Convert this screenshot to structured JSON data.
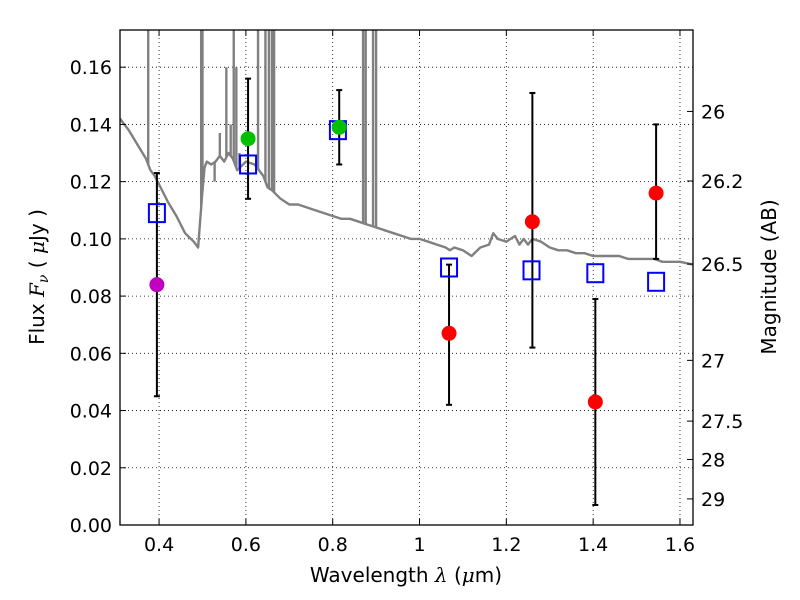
{
  "chart_data": {
    "type": "scatter",
    "xlabel_parts": [
      "Wavelength  ",
      "λ",
      " (",
      "μ",
      "m)"
    ],
    "ylabel_parts": [
      "Flux  ",
      "F",
      "ν",
      "  ( ",
      "μ",
      "Jy )"
    ],
    "y2label": "Magnitude (AB)",
    "xlim": [
      0.31,
      1.63
    ],
    "ylim": [
      0.0,
      0.173
    ],
    "xticks": [
      0.4,
      0.6,
      0.8,
      1.0,
      1.2,
      1.4,
      1.6
    ],
    "xtick_labels": [
      "0.4",
      "0.6",
      "0.8",
      "1",
      "1.2",
      "1.4",
      "1.6"
    ],
    "yticks": [
      0.0,
      0.02,
      0.04,
      0.06,
      0.08,
      0.1,
      0.12,
      0.14,
      0.16
    ],
    "ytick_labels": [
      "0.00",
      "0.02",
      "0.04",
      "0.06",
      "0.08",
      "0.10",
      "0.12",
      "0.14",
      "0.16"
    ],
    "y2ticks": [
      26,
      26.2,
      26.5,
      27,
      27.5,
      28,
      29
    ],
    "y2tick_labels": [
      "26",
      "26.2",
      "26.5",
      "27",
      "27.5",
      "28",
      "29"
    ],
    "grid": true,
    "model_sed": {
      "color": "#808080",
      "x": [
        0.31,
        0.33,
        0.35,
        0.37,
        0.38,
        0.39,
        0.4,
        0.42,
        0.44,
        0.46,
        0.48,
        0.49,
        0.5,
        0.505,
        0.51,
        0.52,
        0.53,
        0.54,
        0.55,
        0.56,
        0.57,
        0.58,
        0.6,
        0.62,
        0.64,
        0.65,
        0.66,
        0.68,
        0.7,
        0.72,
        0.74,
        0.76,
        0.78,
        0.8,
        0.82,
        0.84,
        0.86,
        0.88,
        0.9,
        0.92,
        0.94,
        0.96,
        0.98,
        1.0,
        1.02,
        1.04,
        1.06,
        1.07,
        1.08,
        1.1,
        1.12,
        1.14,
        1.16,
        1.17,
        1.18,
        1.2,
        1.22,
        1.23,
        1.24,
        1.25,
        1.26,
        1.28,
        1.3,
        1.32,
        1.34,
        1.36,
        1.38,
        1.4,
        1.42,
        1.44,
        1.46,
        1.48,
        1.5,
        1.52,
        1.54,
        1.56,
        1.58,
        1.6,
        1.63
      ],
      "y": [
        0.142,
        0.138,
        0.133,
        0.128,
        0.124,
        0.122,
        0.119,
        0.113,
        0.108,
        0.102,
        0.099,
        0.097,
        0.117,
        0.125,
        0.127,
        0.126,
        0.127,
        0.129,
        0.127,
        0.13,
        0.128,
        0.124,
        0.127,
        0.126,
        0.122,
        0.118,
        0.117,
        0.114,
        0.112,
        0.112,
        0.111,
        0.11,
        0.109,
        0.108,
        0.107,
        0.107,
        0.106,
        0.105,
        0.104,
        0.103,
        0.102,
        0.101,
        0.1,
        0.1,
        0.099,
        0.098,
        0.097,
        0.096,
        0.097,
        0.096,
        0.094,
        0.097,
        0.098,
        0.102,
        0.1,
        0.099,
        0.101,
        0.098,
        0.1,
        0.098,
        0.1,
        0.099,
        0.097,
        0.096,
        0.096,
        0.095,
        0.095,
        0.094,
        0.094,
        0.094,
        0.094,
        0.093,
        0.093,
        0.093,
        0.093,
        0.092,
        0.092,
        0.092,
        0.091
      ],
      "spikes": [
        {
          "x": 0.375,
          "y": 0.185
        },
        {
          "x": 0.497,
          "y": 0.185
        },
        {
          "x": 0.5,
          "y": 0.185
        },
        {
          "x": 0.528,
          "y": 0.12
        },
        {
          "x": 0.54,
          "y": 0.137
        },
        {
          "x": 0.555,
          "y": 0.16
        },
        {
          "x": 0.565,
          "y": 0.14
        },
        {
          "x": 0.572,
          "y": 0.185
        },
        {
          "x": 0.578,
          "y": 0.16
        },
        {
          "x": 0.585,
          "y": 0.13
        },
        {
          "x": 0.628,
          "y": 0.185
        },
        {
          "x": 0.645,
          "y": 0.185
        },
        {
          "x": 0.653,
          "y": 0.185
        },
        {
          "x": 0.66,
          "y": 0.185
        },
        {
          "x": 0.665,
          "y": 0.185
        },
        {
          "x": 0.87,
          "y": 0.185
        },
        {
          "x": 0.876,
          "y": 0.185
        },
        {
          "x": 0.893,
          "y": 0.185
        },
        {
          "x": 0.9,
          "y": 0.185
        }
      ]
    },
    "model_photometry": {
      "color": "#0000ff",
      "x": [
        0.395,
        0.605,
        0.812,
        1.068,
        1.258,
        1.405,
        1.545
      ],
      "y": [
        0.109,
        0.126,
        0.138,
        0.09,
        0.089,
        0.088,
        0.085
      ]
    },
    "observed": [
      {
        "x": 0.395,
        "y": 0.084,
        "yerr_lo": 0.045,
        "yerr_hi": 0.123,
        "color": "#bf00bf"
      },
      {
        "x": 0.605,
        "y": 0.135,
        "yerr_lo": 0.114,
        "yerr_hi": 0.156,
        "color": "#00c000"
      },
      {
        "x": 0.815,
        "y": 0.139,
        "yerr_lo": 0.126,
        "yerr_hi": 0.152,
        "color": "#00c000"
      },
      {
        "x": 1.068,
        "y": 0.067,
        "yerr_lo": 0.042,
        "yerr_hi": 0.091,
        "color": "#ff0000"
      },
      {
        "x": 1.26,
        "y": 0.106,
        "yerr_lo": 0.062,
        "yerr_hi": 0.151,
        "color": "#ff0000"
      },
      {
        "x": 1.405,
        "y": 0.043,
        "yerr_lo": 0.007,
        "yerr_hi": 0.079,
        "color": "#ff0000"
      },
      {
        "x": 1.545,
        "y": 0.116,
        "yerr_lo": 0.093,
        "yerr_hi": 0.14,
        "color": "#ff0000"
      }
    ]
  }
}
